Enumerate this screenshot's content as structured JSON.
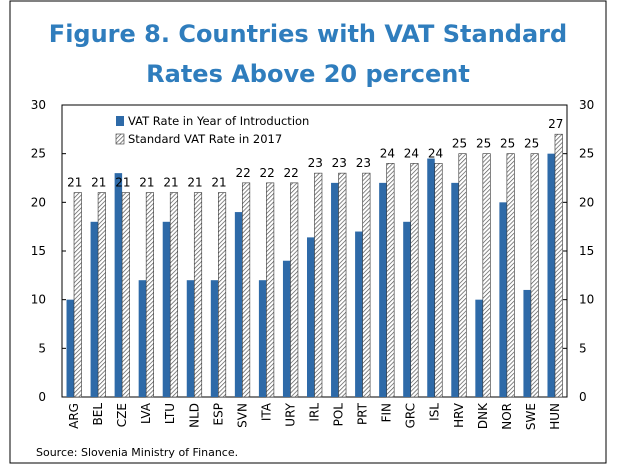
{
  "chart_data": {
    "type": "bar",
    "title": [
      "Figure 8. Countries with VAT Standard",
      "Rates Above 20 percent"
    ],
    "categories": [
      "ARG",
      "BEL",
      "CZE",
      "LVA",
      "LTU",
      "NLD",
      "ESP",
      "SVN",
      "ITA",
      "URY",
      "IRL",
      "POL",
      "PRT",
      "FIN",
      "GRC",
      "ISL",
      "HRV",
      "DNK",
      "NOR",
      "SWE",
      "HUN"
    ],
    "series": [
      {
        "name": "VAT Rate in Year of Introduction",
        "color": "#2e6aa8",
        "values": [
          10,
          18,
          23,
          12,
          18,
          12,
          12,
          19,
          12,
          14,
          16.4,
          22,
          17,
          22,
          18,
          24.5,
          22,
          10,
          20,
          11,
          25
        ]
      },
      {
        "name": "Standard VAT Rate in 2017",
        "color": "#555555",
        "pattern": "hatch",
        "values": [
          21,
          21,
          21,
          21,
          21,
          21,
          21,
          22,
          22,
          22,
          23,
          23,
          23,
          24,
          24,
          24,
          25,
          25,
          25,
          25,
          27
        ]
      }
    ],
    "ylim": [
      0,
      30
    ],
    "yticks": [
      0,
      5,
      10,
      15,
      20,
      25,
      30
    ],
    "y2lim": [
      0,
      30
    ],
    "y2ticks": [
      0,
      5,
      10,
      15,
      20,
      25,
      30
    ],
    "legend": "upper left",
    "source": "Source: Slovenia Ministry of Finance."
  }
}
